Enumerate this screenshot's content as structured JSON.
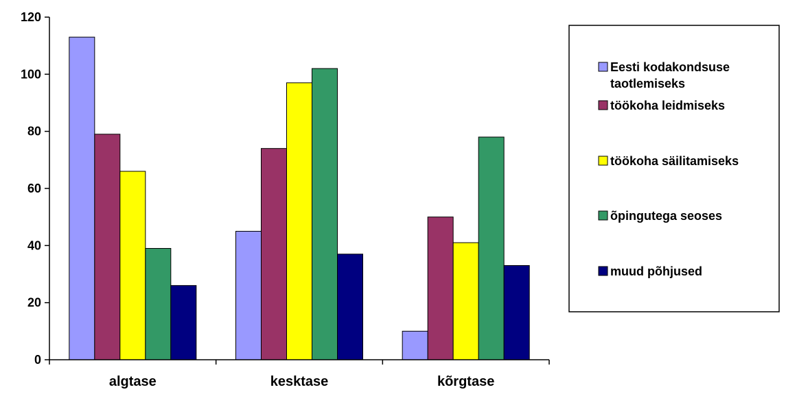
{
  "chart_data": {
    "type": "bar",
    "categories": [
      "algtase",
      "kesktase",
      "kõrgtase"
    ],
    "series": [
      {
        "name": "Eesti kodakondsuse taotlemiseks",
        "color": "#9999ff",
        "values": [
          113,
          45,
          10
        ]
      },
      {
        "name": "töökoha leidmiseks",
        "color": "#993366",
        "values": [
          79,
          74,
          50
        ]
      },
      {
        "name": "töökoha säilitamiseks",
        "color": "#ffff00",
        "values": [
          66,
          97,
          41
        ]
      },
      {
        "name": "õpingutega seoses",
        "color": "#339966",
        "values": [
          39,
          102,
          78
        ]
      },
      {
        "name": "muud põhjused",
        "color": "#000080",
        "values": [
          26,
          37,
          33
        ]
      }
    ],
    "yticks": [
      "0",
      "20",
      "40",
      "60",
      "80",
      "100",
      "120"
    ],
    "ylim": [
      0,
      120
    ],
    "grid": false,
    "legend": "right"
  }
}
